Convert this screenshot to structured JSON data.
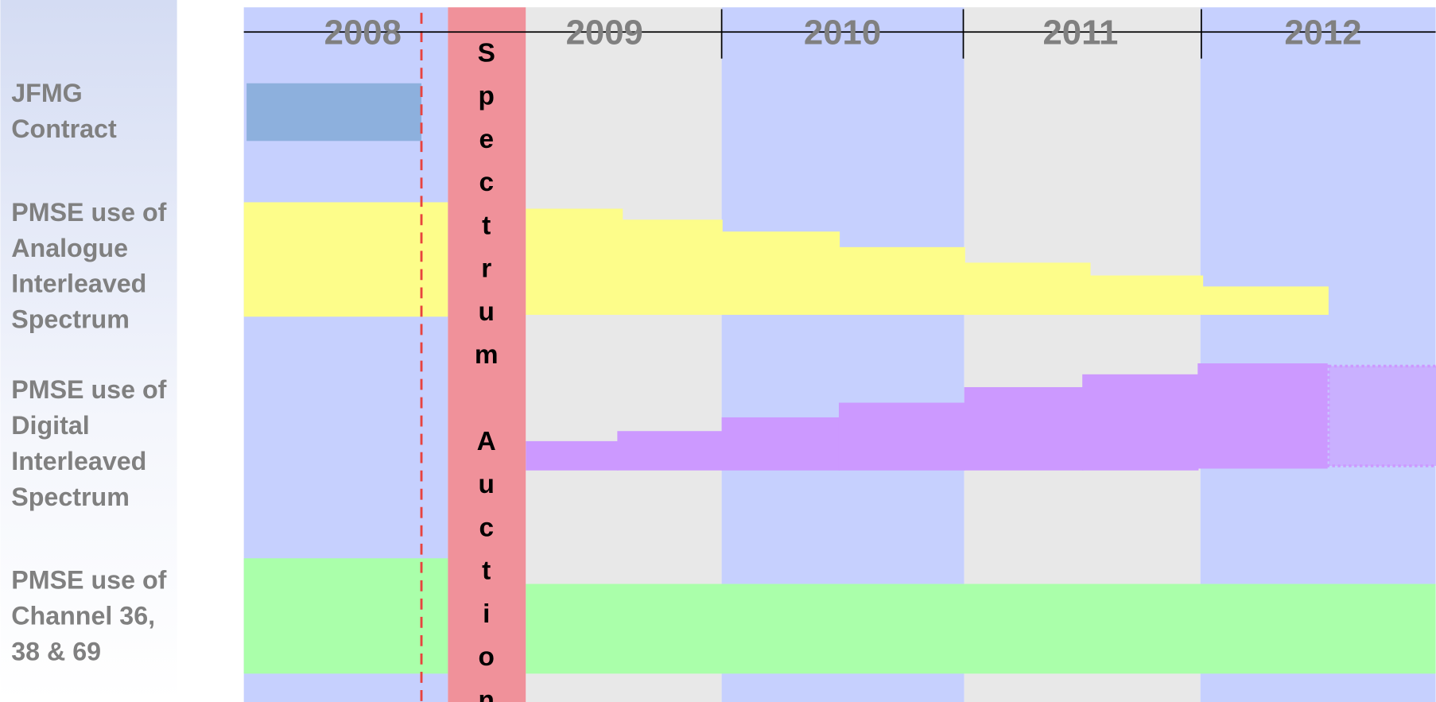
{
  "timeline": {
    "years": [
      "2008",
      "2009",
      "2010",
      "2011",
      "2012"
    ],
    "auction": "Spectrum Auction",
    "rows": [
      {
        "lines": [
          "JFMG",
          "Contract"
        ]
      },
      {
        "lines": [
          "PMSE use of",
          "Analogue",
          "Interleaved",
          "Spectrum"
        ]
      },
      {
        "lines": [
          "PMSE use of",
          "Digital",
          "Interleaved",
          "Spectrum"
        ]
      },
      {
        "lines": [
          "PMSE use of",
          "Channel 36,",
          "38 & 69"
        ]
      }
    ]
  }
}
